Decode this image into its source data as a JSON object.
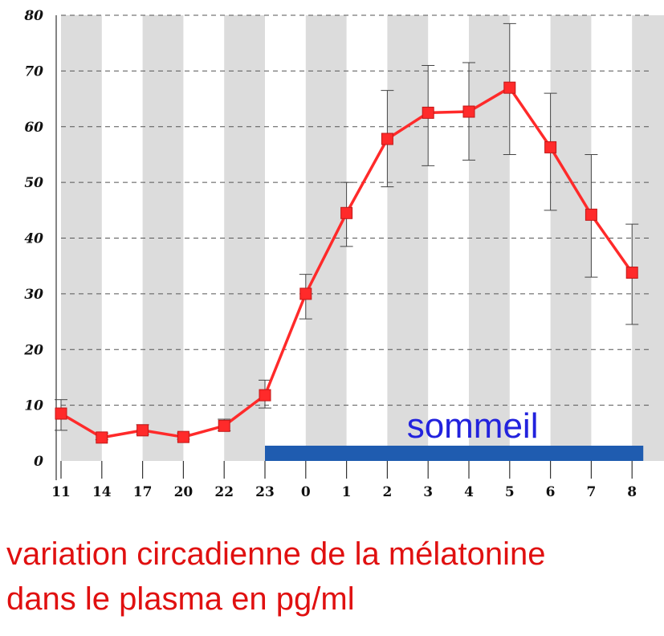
{
  "chart_data": {
    "type": "line",
    "categories": [
      "11",
      "14",
      "17",
      "20",
      "22",
      "23",
      "0",
      "1",
      "2",
      "3",
      "4",
      "5",
      "6",
      "7",
      "8"
    ],
    "series": [
      {
        "values": [
          8.5,
          4.2,
          5.5,
          4.3,
          6.3,
          11.8,
          30.0,
          44.5,
          57.8,
          62.5,
          62.7,
          67.0,
          56.3,
          44.2,
          33.8
        ],
        "error_low": [
          5.5,
          3.8,
          4.8,
          3.9,
          5.4,
          9.5,
          25.5,
          38.5,
          49.2,
          53.0,
          54.0,
          55.0,
          45.0,
          33.0,
          24.5
        ],
        "error_high": [
          11.0,
          5.0,
          6.5,
          5.0,
          7.5,
          14.5,
          33.5,
          50.0,
          66.5,
          71.0,
          71.5,
          78.5,
          66.0,
          55.0,
          42.5
        ],
        "color": "#ff2a2a"
      }
    ],
    "ylim": [
      0,
      80
    ],
    "yticks": [
      "0",
      "10",
      "20",
      "30",
      "40",
      "50",
      "60",
      "70",
      "80"
    ],
    "grid": true,
    "shaded_columns_color": "#dcdcdc",
    "sleep_band": {
      "label": "sommeil",
      "from_category": "23",
      "to_category": "8",
      "color": "#1f5cb0",
      "label_color": "#2222dd"
    }
  },
  "caption": {
    "line1": "variation circadienne de la mélatonine",
    "line2": "dans le plasma en pg/ml",
    "color": "#e01010"
  }
}
